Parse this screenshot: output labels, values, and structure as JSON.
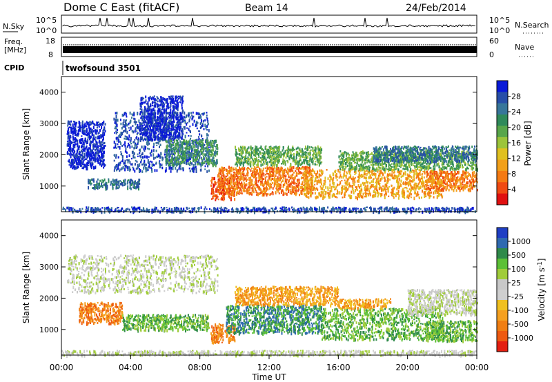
{
  "header": {
    "station": "Dome C East (fitACF)",
    "beam": "Beam 14",
    "date": "24/Feb/2014"
  },
  "noise_panel": {
    "left_label": "N.Sky",
    "right_label": "N.Search",
    "right_ticks": [
      "10^5",
      "10^0"
    ],
    "left_ticks": [
      "10^5",
      "10^0"
    ]
  },
  "freq_panel": {
    "left_label_line1": "Freq.",
    "left_label_line2": "[MHz]",
    "left_ticks": [
      "18",
      "8"
    ],
    "right_label": "Nave",
    "right_ticks": [
      "60",
      "0"
    ]
  },
  "cpid": {
    "label": "CPID",
    "value": "twofsound 3501"
  },
  "chart_data": [
    {
      "type": "heatmap",
      "name": "power",
      "ylabel": "Slant Range [km]",
      "ylim": [
        180,
        4500
      ],
      "y_ticks": [
        1000,
        2000,
        3000,
        4000
      ],
      "xlim_hours": [
        0,
        24
      ],
      "colorbar_label": "Power [dB]",
      "colorbar_ticks": [
        "28",
        "24",
        "20",
        "16",
        "12",
        "8",
        "4"
      ],
      "colorbar_colors": [
        "#0a1ad8",
        "#274ea8",
        "#37769a",
        "#2f8a5a",
        "#58a64a",
        "#9cc43a",
        "#e0c020",
        "#f2a01a",
        "#f57a12",
        "#f04a12",
        "#e01010"
      ],
      "echo_regions": [
        {
          "t0": 0.0,
          "t1": 24.0,
          "r0": 200,
          "r1": 350,
          "level": 1
        },
        {
          "t0": 0.3,
          "t1": 2.5,
          "r0": 1600,
          "r1": 3100,
          "level": 0
        },
        {
          "t0": 1.5,
          "t1": 4.5,
          "r0": 950,
          "r1": 1250,
          "level": 2
        },
        {
          "t0": 3.0,
          "t1": 8.5,
          "r0": 1500,
          "r1": 3400,
          "level": 1
        },
        {
          "t0": 4.5,
          "t1": 7.0,
          "r0": 2500,
          "r1": 3900,
          "level": 0
        },
        {
          "t0": 6.0,
          "t1": 9.0,
          "r0": 1700,
          "r1": 2500,
          "level": 3
        },
        {
          "t0": 8.6,
          "t1": 10.0,
          "r0": 600,
          "r1": 1300,
          "level": 9
        },
        {
          "t0": 9.0,
          "t1": 14.5,
          "r0": 750,
          "r1": 1650,
          "level": 8
        },
        {
          "t0": 10.0,
          "t1": 15.0,
          "r0": 1700,
          "r1": 2300,
          "level": 4
        },
        {
          "t0": 14.0,
          "t1": 22.0,
          "r0": 650,
          "r1": 1550,
          "level": 7
        },
        {
          "t0": 16.0,
          "t1": 24.0,
          "r0": 1550,
          "r1": 2150,
          "level": 4
        },
        {
          "t0": 21.0,
          "t1": 24.0,
          "r0": 900,
          "r1": 1500,
          "level": 8
        },
        {
          "t0": 18.0,
          "t1": 24.0,
          "r0": 1800,
          "r1": 2300,
          "level": 2
        }
      ]
    },
    {
      "type": "heatmap",
      "name": "velocity",
      "ylabel": "Slant Range [km]",
      "xlabel": "Time UT",
      "ylim": [
        180,
        4500
      ],
      "y_ticks": [
        1000,
        2000,
        3000,
        4000
      ],
      "xlim_hours": [
        0,
        24
      ],
      "x_ticks": [
        "00:00",
        "04:00",
        "08:00",
        "12:00",
        "16:00",
        "20:00",
        "00:00"
      ],
      "colorbar_label": "Velocity [m s^-1]",
      "colorbar_ticks": [
        "1000",
        "500",
        "100",
        "25",
        "-25",
        "-100",
        "-500",
        "-1000"
      ],
      "colorbar_colors": [
        "#1f3fc4",
        "#2f6ab0",
        "#2f8a4a",
        "#5cc036",
        "#a0cc3a",
        "#c8c8c8",
        "#cfcfcf",
        "#f0c020",
        "#f5a020",
        "#f07e12",
        "#ee5a10",
        "#e41e10"
      ],
      "echo_regions": [
        {
          "t0": 0.0,
          "t1": 24.0,
          "r0": 200,
          "r1": 350,
          "level": 5
        },
        {
          "t0": 0.3,
          "t1": 9.0,
          "r0": 2200,
          "r1": 3400,
          "level": 5
        },
        {
          "t0": 1.0,
          "t1": 3.5,
          "r0": 1200,
          "r1": 1900,
          "level": 9
        },
        {
          "t0": 3.5,
          "t1": 8.5,
          "r0": 1000,
          "r1": 1500,
          "level": 3
        },
        {
          "t0": 8.6,
          "t1": 10.0,
          "r0": 600,
          "r1": 1200,
          "level": 9
        },
        {
          "t0": 9.5,
          "t1": 15.0,
          "r0": 900,
          "r1": 1800,
          "level": 2
        },
        {
          "t0": 10.0,
          "t1": 16.0,
          "r0": 1800,
          "r1": 2400,
          "level": 8
        },
        {
          "t0": 15.0,
          "t1": 22.0,
          "r0": 700,
          "r1": 1700,
          "level": 3
        },
        {
          "t0": 16.0,
          "t1": 19.0,
          "r0": 1700,
          "r1": 2000,
          "level": 8
        },
        {
          "t0": 21.0,
          "t1": 24.0,
          "r0": 650,
          "r1": 1300,
          "level": 3
        },
        {
          "t0": 20.0,
          "t1": 24.0,
          "r0": 1500,
          "r1": 2300,
          "level": 5
        }
      ]
    }
  ]
}
